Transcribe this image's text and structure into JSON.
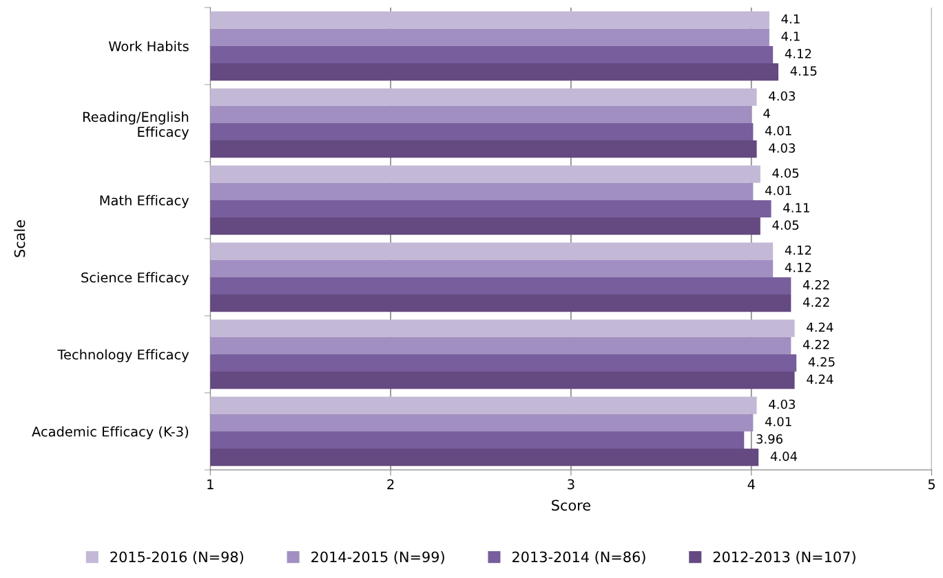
{
  "chart_data": {
    "type": "bar",
    "orientation": "horizontal",
    "xlabel": "Score",
    "ylabel": "Scale",
    "categories": [
      "Work Habits",
      "Reading/English\nEfficacy",
      "Math Efficacy",
      "Science Efficacy",
      "Technology Efficacy",
      "Academic Efficacy (K-3)"
    ],
    "series": [
      {
        "name": "2015-2016 (N=98)",
        "color": "#c3b9d6",
        "values": [
          4.1,
          4.03,
          4.05,
          4.12,
          4.24,
          4.03
        ]
      },
      {
        "name": "2014-2015 (N=99)",
        "color": "#a28fc2",
        "values": [
          4.1,
          4,
          4.01,
          4.12,
          4.22,
          4.01
        ]
      },
      {
        "name": "2013-2014 (N=86)",
        "color": "#785e9c",
        "values": [
          4.12,
          4.01,
          4.11,
          4.22,
          4.25,
          3.96
        ]
      },
      {
        "name": "2012-2013 (N=107)",
        "color": "#644a80",
        "values": [
          4.15,
          4.03,
          4.05,
          4.22,
          4.24,
          4.04
        ]
      }
    ],
    "xlim": [
      1,
      5
    ],
    "xticks": [
      1,
      2,
      3,
      4,
      5
    ],
    "grid": "x",
    "legend": "bottom",
    "data_labels": true
  }
}
